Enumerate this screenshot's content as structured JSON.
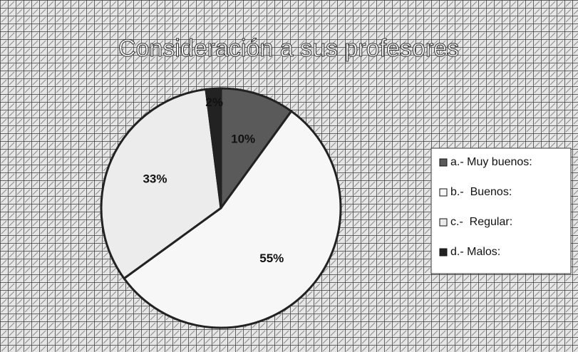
{
  "chart_data": {
    "type": "pie",
    "title": "Consideración a sus profesores",
    "categories": [
      "a.- Muy buenos:",
      "b.-  Buenos:",
      "c.-  Regular:",
      "d.- Malos:"
    ],
    "values": [
      10,
      55,
      33,
      2
    ],
    "value_labels": [
      "10%",
      "55%",
      "33%",
      "2%"
    ],
    "colors": [
      "#5a5a5a",
      "#f7f7f7",
      "#ececec",
      "#222222"
    ],
    "legend": "right"
  }
}
